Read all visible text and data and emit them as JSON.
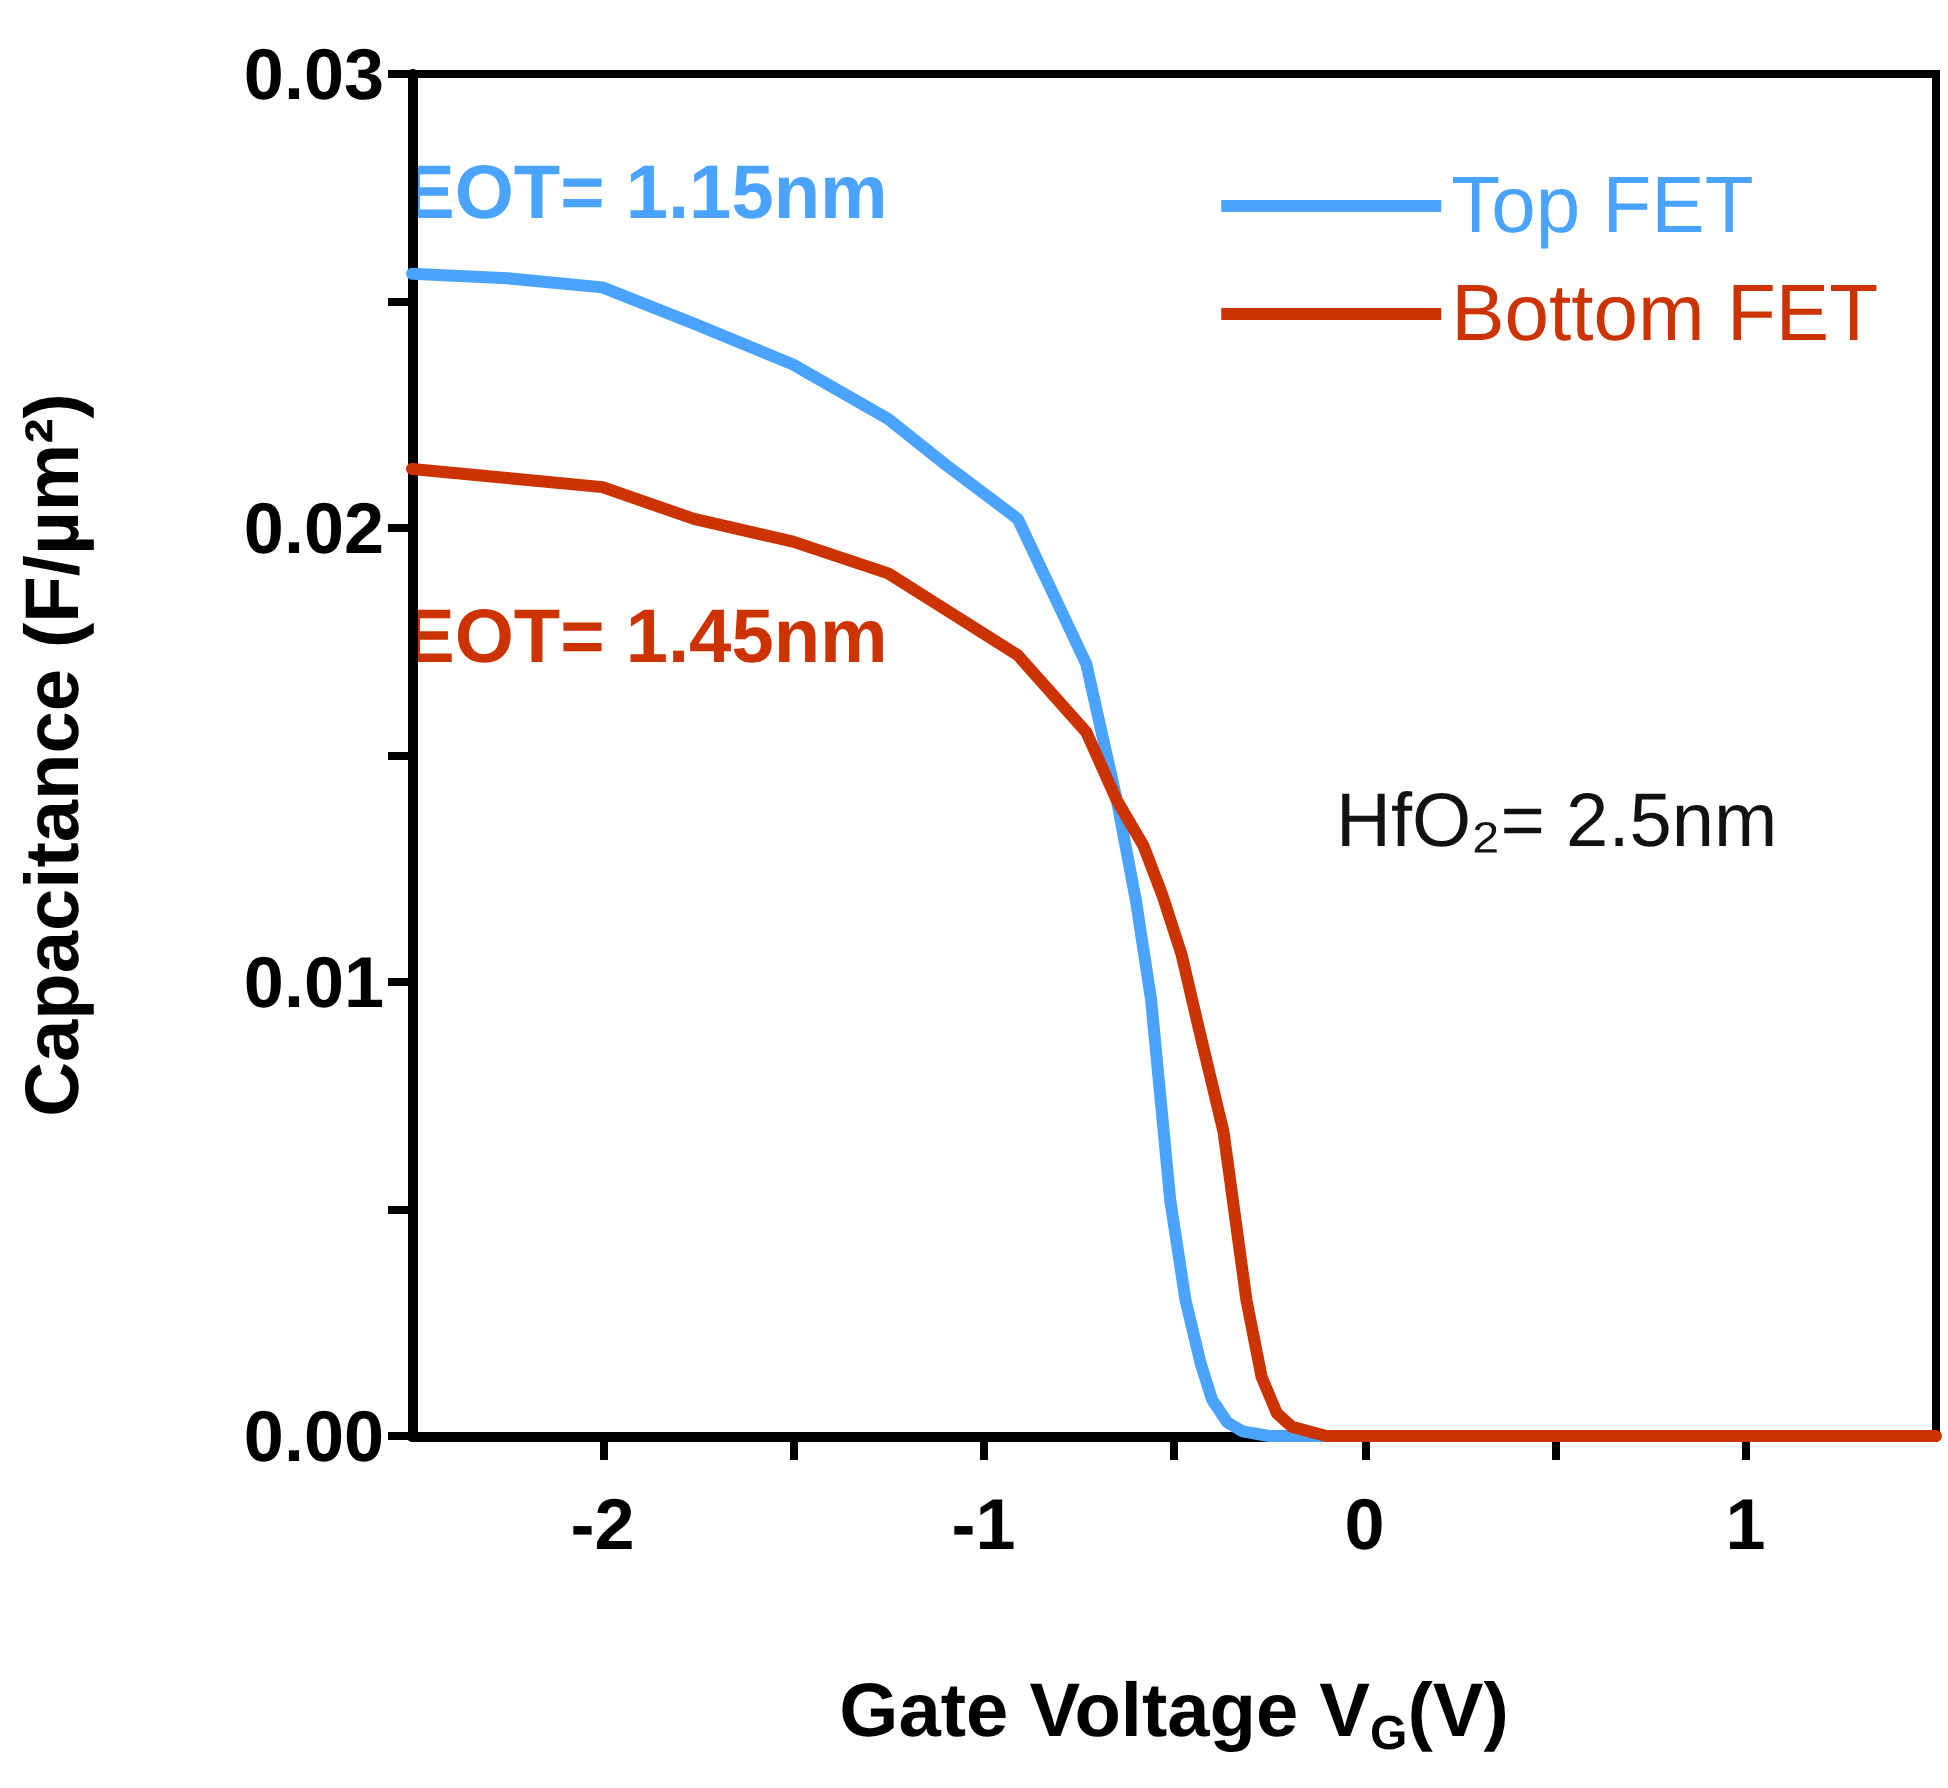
{
  "chart_data": {
    "type": "line",
    "xlabel": "Gate Voltage V$_{G}$(V)",
    "ylabel": "Capacitance (F/µm²)",
    "xlim": [
      -2.5,
      1.5
    ],
    "xticks": [
      {
        "value": -2,
        "label": "-2"
      },
      {
        "value": -1.5,
        "label": null
      },
      {
        "value": -1,
        "label": "-1"
      },
      {
        "value": -0.5,
        "label": null
      },
      {
        "value": 0,
        "label": "0"
      },
      {
        "value": 0.5,
        "label": null
      },
      {
        "value": 1,
        "label": "1"
      }
    ],
    "ylim": [
      0,
      0.03
    ],
    "yticks": [
      {
        "value": 0,
        "label": "0.00"
      },
      {
        "value": 0.005,
        "label": null
      },
      {
        "value": 0.01,
        "label": "0.01"
      },
      {
        "value": 0.015,
        "label": null
      },
      {
        "value": 0.02,
        "label": "0.02"
      },
      {
        "value": 0.025,
        "label": null
      },
      {
        "value": 0.03,
        "label": "0.03"
      }
    ],
    "grid": false,
    "legend": "top right",
    "line_style": "solid",
    "annotations": [
      "EOT= 1.15nm",
      "EOT= 1.45nm",
      "HfO₂= 2.5nm"
    ],
    "series": [
      {
        "name": "Top FET",
        "color": "#4aa3ff",
        "x": [
          -2.5,
          -2.25,
          -2,
          -1.76,
          -1.5,
          -1.25,
          -1.1,
          -0.91,
          -0.82,
          -0.73,
          -0.65,
          -0.6,
          -0.56,
          -0.51,
          -0.47,
          -0.43,
          -0.4,
          -0.36,
          -0.32,
          -0.25,
          0
        ],
        "values": [
          0.0256,
          0.0255,
          0.0253,
          0.0245,
          0.0236,
          0.0224,
          0.0214,
          0.0202,
          0.0186,
          0.017,
          0.014,
          0.0118,
          0.0096,
          0.0052,
          0.003,
          0.0016,
          0.0008,
          0.0003,
          0.0001,
          0,
          0
        ]
      },
      {
        "name": "Bottom FET",
        "color": "#cc3300",
        "x": [
          -2.5,
          -2.25,
          -2,
          -1.76,
          -1.5,
          -1.25,
          -1.08,
          -0.91,
          -0.73,
          -0.65,
          -0.58,
          -0.53,
          -0.48,
          -0.43,
          -0.37,
          -0.31,
          -0.27,
          -0.23,
          -0.19,
          -0.1,
          0,
          0.5,
          1,
          1.5
        ],
        "values": [
          0.0213,
          0.0211,
          0.0209,
          0.0202,
          0.0197,
          0.019,
          0.0181,
          0.0172,
          0.0155,
          0.014,
          0.013,
          0.0119,
          0.0106,
          0.0088,
          0.0067,
          0.003,
          0.0013,
          0.0005,
          0.0002,
          0,
          0,
          0,
          0,
          0
        ]
      }
    ]
  }
}
